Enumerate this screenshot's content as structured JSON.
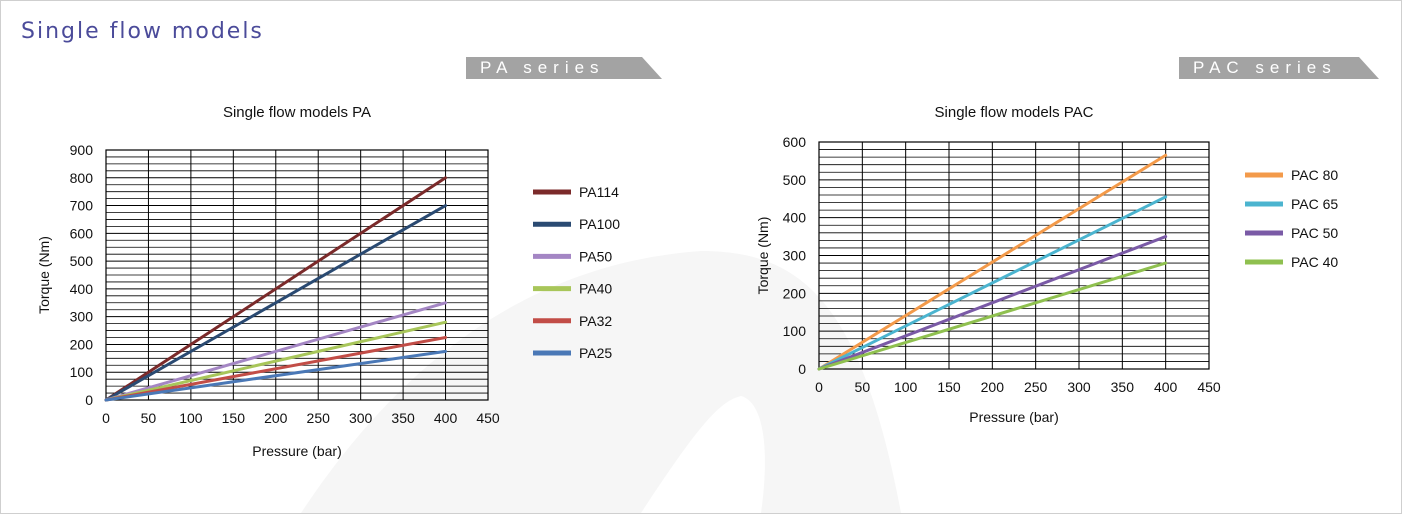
{
  "page": {
    "title": "Single flow models",
    "tabs": {
      "pa": "PA series",
      "pac": "PAC series"
    },
    "colors": {
      "title": "#4b4b9a",
      "tab": "#a3a3a3"
    }
  },
  "chart_data": [
    {
      "type": "line",
      "title": "Single flow models PA",
      "xlabel": "Pressure (bar)",
      "ylabel": "Torque (Nm)",
      "xlim": [
        0,
        450
      ],
      "ylim": [
        0,
        900
      ],
      "xticks": [
        0,
        50,
        100,
        150,
        200,
        250,
        300,
        350,
        400,
        450
      ],
      "yticks": [
        0,
        100,
        200,
        300,
        400,
        500,
        600,
        700,
        800,
        900
      ],
      "grid": true,
      "legend": "right",
      "series": [
        {
          "name": "PA114",
          "color": "#7b2a2a",
          "x": [
            0,
            400
          ],
          "y": [
            0,
            800
          ]
        },
        {
          "name": "PA100",
          "color": "#2a4a72",
          "x": [
            0,
            400
          ],
          "y": [
            0,
            700
          ]
        },
        {
          "name": "PA50",
          "color": "#a486c4",
          "x": [
            0,
            400
          ],
          "y": [
            0,
            350
          ]
        },
        {
          "name": "PA40",
          "color": "#a8c65a",
          "x": [
            0,
            400
          ],
          "y": [
            0,
            280
          ]
        },
        {
          "name": "PA32",
          "color": "#c24d47",
          "x": [
            0,
            400
          ],
          "y": [
            0,
            225
          ]
        },
        {
          "name": "PA25",
          "color": "#4a78b6",
          "x": [
            0,
            400
          ],
          "y": [
            0,
            175
          ]
        }
      ]
    },
    {
      "type": "line",
      "title": "Single flow models PAC",
      "xlabel": "Pressure (bar)",
      "ylabel": "Torque (Nm)",
      "xlim": [
        0,
        450
      ],
      "ylim": [
        0,
        600
      ],
      "xticks": [
        0,
        50,
        100,
        150,
        200,
        250,
        300,
        350,
        400,
        450
      ],
      "yticks": [
        0,
        100,
        200,
        300,
        400,
        500,
        600
      ],
      "grid": true,
      "legend": "right",
      "series": [
        {
          "name": "PAC 80",
          "color": "#f39a4a",
          "x": [
            0,
            400
          ],
          "y": [
            0,
            565
          ]
        },
        {
          "name": "PAC 65",
          "color": "#4bb4cf",
          "x": [
            0,
            400
          ],
          "y": [
            0,
            455
          ]
        },
        {
          "name": "PAC 50",
          "color": "#7a5aa6",
          "x": [
            0,
            400
          ],
          "y": [
            0,
            350
          ]
        },
        {
          "name": "PAC 40",
          "color": "#8fc04f",
          "x": [
            0,
            400
          ],
          "y": [
            0,
            280
          ]
        }
      ]
    }
  ]
}
